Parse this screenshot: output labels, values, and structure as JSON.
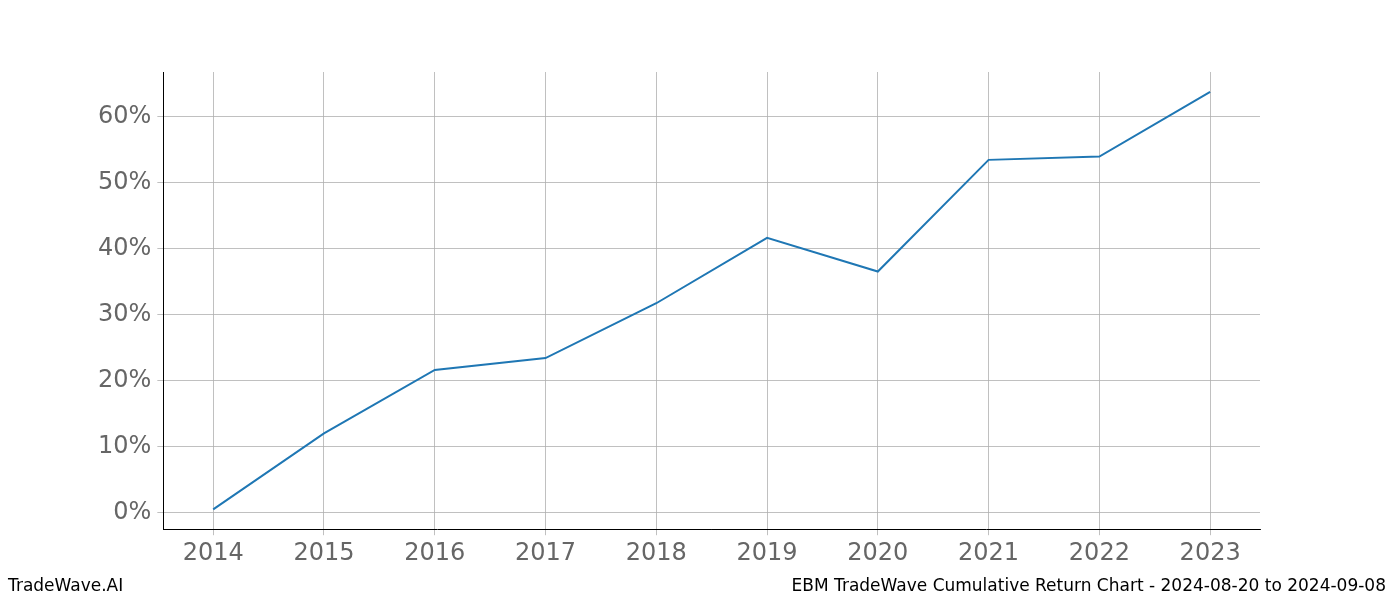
{
  "chart_data": {
    "type": "line",
    "title": "EBM TradeWave Cumulative Return Chart - 2024-08-20 to 2024-09-08",
    "annotations": [
      "TradeWave.AI"
    ],
    "x": [
      2014,
      2015,
      2016,
      2017,
      2018,
      2019,
      2020,
      2021,
      2022,
      2023
    ],
    "values": [
      0.5,
      12.0,
      21.6,
      23.4,
      31.7,
      41.6,
      36.5,
      53.4,
      53.9,
      63.7
    ],
    "color": "#1f77b4",
    "xlim": [
      2013.55,
      2023.45
    ],
    "xticks": [
      2014,
      2015,
      2016,
      2017,
      2018,
      2019,
      2020,
      2021,
      2022,
      2023
    ],
    "ylim": [
      -2.5,
      66.7
    ],
    "yticks": [
      {
        "value": 0,
        "label": "0%"
      },
      {
        "value": 10,
        "label": "10%"
      },
      {
        "value": 20,
        "label": "20%"
      },
      {
        "value": 30,
        "label": "30%"
      },
      {
        "value": 40,
        "label": "40%"
      },
      {
        "value": 50,
        "label": "50%"
      },
      {
        "value": 60,
        "label": "60%"
      }
    ],
    "grid": true
  }
}
